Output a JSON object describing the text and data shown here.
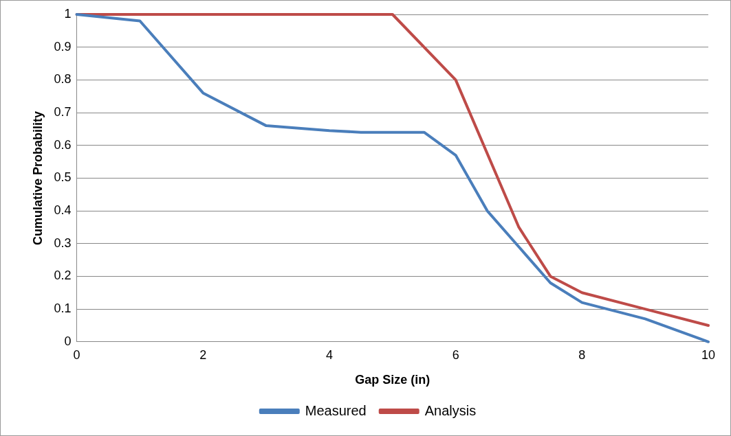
{
  "chart_data": {
    "type": "line",
    "xlabel": "Gap Size (in)",
    "ylabel": "Cumulative Probability",
    "xlim": [
      0,
      10
    ],
    "xticks": [
      0,
      2,
      4,
      6,
      8,
      10
    ],
    "ylim": [
      0,
      1
    ],
    "yticks": [
      0,
      0.1,
      0.2,
      0.3,
      0.4,
      0.5,
      0.6,
      0.7,
      0.8,
      0.9,
      1
    ],
    "grid": "y",
    "legend": "bottom",
    "marker": "none",
    "line_style": "solid",
    "series": [
      {
        "name": "Measured",
        "color": "#4a7ebb",
        "x": [
          0,
          1,
          2,
          3,
          4,
          4.5,
          5.5,
          6,
          6.5,
          7,
          7.5,
          8,
          9,
          10
        ],
        "values": [
          1,
          0.98,
          0.76,
          0.66,
          0.645,
          0.64,
          0.64,
          0.57,
          0.4,
          0.29,
          0.18,
          0.12,
          0.07,
          0
        ]
      },
      {
        "name": "Analysis",
        "color": "#be4b48",
        "x": [
          0,
          5,
          6,
          7,
          7.5,
          8,
          9,
          10
        ],
        "values": [
          1,
          1,
          0.8,
          0.35,
          0.2,
          0.15,
          0.1,
          0.05
        ]
      }
    ]
  }
}
